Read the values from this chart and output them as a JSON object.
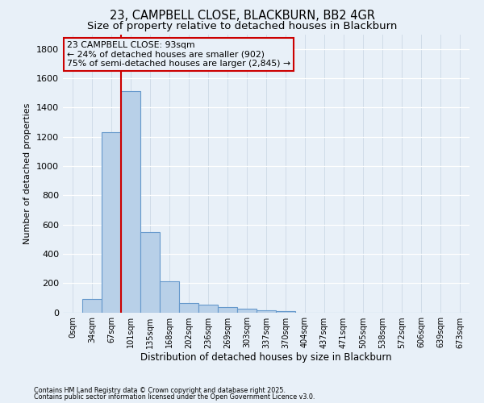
{
  "title": "23, CAMPBELL CLOSE, BLACKBURN, BB2 4GR",
  "subtitle": "Size of property relative to detached houses in Blackburn",
  "xlabel": "Distribution of detached houses by size in Blackburn",
  "ylabel": "Number of detached properties",
  "categories": [
    "0sqm",
    "34sqm",
    "67sqm",
    "101sqm",
    "135sqm",
    "168sqm",
    "202sqm",
    "236sqm",
    "269sqm",
    "303sqm",
    "337sqm",
    "370sqm",
    "404sqm",
    "437sqm",
    "471sqm",
    "505sqm",
    "538sqm",
    "572sqm",
    "606sqm",
    "639sqm",
    "673sqm"
  ],
  "bar_values": [
    0,
    90,
    1230,
    1510,
    550,
    210,
    65,
    55,
    35,
    25,
    15,
    10,
    0,
    0,
    0,
    0,
    0,
    0,
    0,
    0,
    0
  ],
  "bar_color": "#b8d0e8",
  "bar_edge_color": "#6699cc",
  "property_sqm": 93,
  "annotation_text_line1": "23 CAMPBELL CLOSE: 93sqm",
  "annotation_text_line2": "← 24% of detached houses are smaller (902)",
  "annotation_text_line3": "75% of semi-detached houses are larger (2,845) →",
  "ylim": [
    0,
    1900
  ],
  "yticks": [
    0,
    200,
    400,
    600,
    800,
    1000,
    1200,
    1400,
    1600,
    1800
  ],
  "footnote1": "Contains HM Land Registry data © Crown copyright and database right 2025.",
  "footnote2": "Contains public sector information licensed under the Open Government Licence v3.0.",
  "bg_color": "#e8f0f8",
  "grid_color": "#d0dce8",
  "title_fontsize": 10.5,
  "subtitle_fontsize": 9.5,
  "annotation_box_color": "#cc0000",
  "red_line_x": 2.76
}
